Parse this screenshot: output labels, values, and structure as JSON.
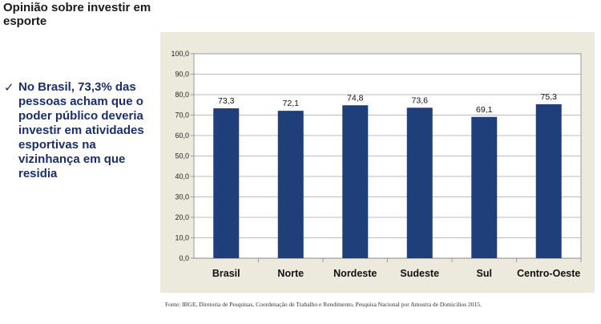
{
  "slide": {
    "title": "Opinião sobre investir em esporte",
    "bullet_icon": "check-icon",
    "bullet_text": "No Brasil, 73,3% das pessoas acham que o poder público deveria investir em atividades esportivas na vizinhança em que residia",
    "source": "Fonte: IBGE, Diretoria de Pesquisas, Coordenação de Trabalho e Rendimento, Pesquisa Nacional por Amostra de Domicílios 2015."
  },
  "chart_data": {
    "type": "bar",
    "categories": [
      "Brasil",
      "Norte",
      "Nordeste",
      "Sudeste",
      "Sul",
      "Centro-Oeste"
    ],
    "values": [
      73.3,
      72.1,
      74.8,
      73.6,
      69.1,
      75.3
    ],
    "data_labels": [
      "73,3",
      "72,1",
      "74,8",
      "73,6",
      "69,1",
      "75,3"
    ],
    "yticks": [
      "0,0",
      "10,0",
      "20,0",
      "30,0",
      "40,0",
      "50,0",
      "60,0",
      "70,0",
      "80,0",
      "90,0",
      "100,0"
    ],
    "ylim": [
      0,
      100
    ],
    "grid": true,
    "bar_color": "#1f3f7a",
    "panel_color": "#ece9dd",
    "title": "",
    "xlabel": "",
    "ylabel": ""
  }
}
